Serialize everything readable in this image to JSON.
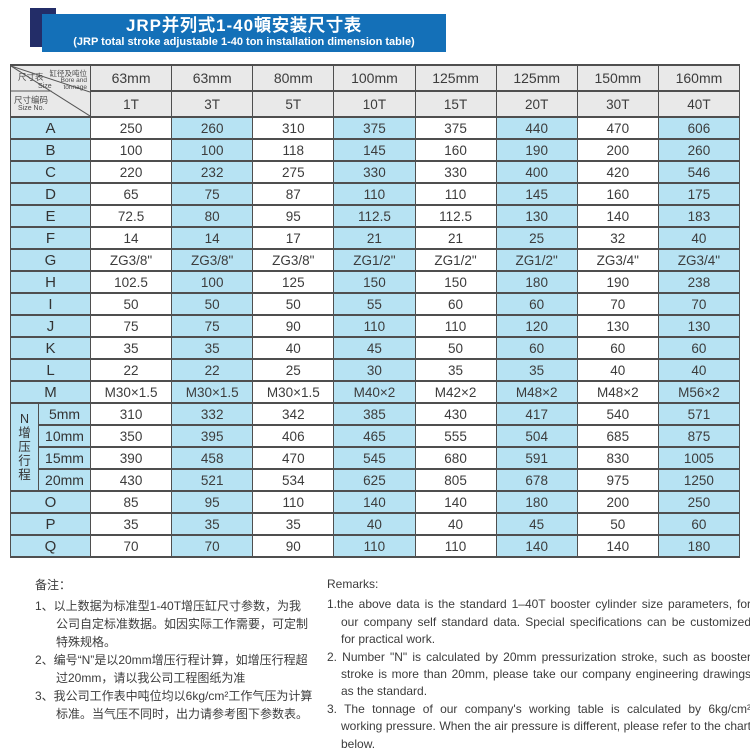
{
  "title": {
    "zh": "JRP并列式1-40頓安装尺寸表",
    "en": "(JRP total stroke adjustable 1-40 ton installation dimension table)"
  },
  "colors": {
    "banner_blue": "#1470b8",
    "ribbon_navy": "#232d68",
    "cell_blue": "#b7e3f3",
    "header_gray": "#e9e9e9",
    "border": "#4f4f4f"
  },
  "table": {
    "corner": {
      "size_zh": "尺寸表",
      "size_en": "Size",
      "bore_zh": "缸径及吨位",
      "bore_en": "Bore and tonnage",
      "no_zh": "尺寸编码",
      "no_en": "Size No."
    },
    "bores": [
      "63mm",
      "63mm",
      "80mm",
      "100mm",
      "125mm",
      "125mm",
      "150mm",
      "160mm"
    ],
    "tonnages": [
      "1T",
      "3T",
      "5T",
      "10T",
      "15T",
      "20T",
      "30T",
      "40T"
    ],
    "rows": [
      {
        "label": "A",
        "values": [
          "250",
          "260",
          "310",
          "375",
          "375",
          "440",
          "470",
          "606"
        ]
      },
      {
        "label": "B",
        "values": [
          "100",
          "100",
          "118",
          "145",
          "160",
          "190",
          "200",
          "260"
        ]
      },
      {
        "label": "C",
        "values": [
          "220",
          "232",
          "275",
          "330",
          "330",
          "400",
          "420",
          "546"
        ]
      },
      {
        "label": "D",
        "values": [
          "65",
          "75",
          "87",
          "110",
          "110",
          "145",
          "160",
          "175"
        ]
      },
      {
        "label": "E",
        "values": [
          "72.5",
          "80",
          "95",
          "112.5",
          "112.5",
          "130",
          "140",
          "183"
        ]
      },
      {
        "label": "F",
        "values": [
          "14",
          "14",
          "17",
          "21",
          "21",
          "25",
          "32",
          "40"
        ]
      },
      {
        "label": "G",
        "values": [
          "ZG3/8\"",
          "ZG3/8\"",
          "ZG3/8\"",
          "ZG1/2\"",
          "ZG1/2\"",
          "ZG1/2\"",
          "ZG3/4\"",
          "ZG3/4\""
        ]
      },
      {
        "label": "H",
        "values": [
          "102.5",
          "100",
          "125",
          "150",
          "150",
          "180",
          "190",
          "238"
        ]
      },
      {
        "label": "I",
        "values": [
          "50",
          "50",
          "50",
          "55",
          "60",
          "60",
          "70",
          "70"
        ]
      },
      {
        "label": "J",
        "values": [
          "75",
          "75",
          "90",
          "110",
          "110",
          "120",
          "130",
          "130"
        ]
      },
      {
        "label": "K",
        "values": [
          "35",
          "35",
          "40",
          "45",
          "50",
          "60",
          "60",
          "60"
        ]
      },
      {
        "label": "L",
        "values": [
          "22",
          "22",
          "25",
          "30",
          "35",
          "35",
          "40",
          "40"
        ]
      },
      {
        "label": "M",
        "values": [
          "M30×1.5",
          "M30×1.5",
          "M30×1.5",
          "M40×2",
          "M42×2",
          "M48×2",
          "M48×2",
          "M56×2"
        ]
      },
      {
        "label": "5mm",
        "sub": true,
        "group": {
          "letter": "N",
          "text": "增压行程",
          "span": 4
        },
        "values": [
          "310",
          "332",
          "342",
          "385",
          "430",
          "417",
          "540",
          "571"
        ]
      },
      {
        "label": "10mm",
        "sub": true,
        "values": [
          "350",
          "395",
          "406",
          "465",
          "555",
          "504",
          "685",
          "875"
        ]
      },
      {
        "label": "15mm",
        "sub": true,
        "values": [
          "390",
          "458",
          "470",
          "545",
          "680",
          "591",
          "830",
          "1005"
        ]
      },
      {
        "label": "20mm",
        "sub": true,
        "values": [
          "430",
          "521",
          "534",
          "625",
          "805",
          "678",
          "975",
          "1250"
        ]
      },
      {
        "label": "O",
        "values": [
          "85",
          "95",
          "110",
          "140",
          "140",
          "180",
          "200",
          "250"
        ]
      },
      {
        "label": "P",
        "values": [
          "35",
          "35",
          "35",
          "40",
          "40",
          "45",
          "50",
          "60"
        ]
      },
      {
        "label": "Q",
        "values": [
          "70",
          "70",
          "90",
          "110",
          "110",
          "140",
          "140",
          "180"
        ]
      }
    ]
  },
  "notes_zh": {
    "heading": "备注：",
    "items": [
      "1、以上数据为标准型1-40T增压缸尺寸参数，为我公司自定标准数据。如因实际工作需要，可定制特殊规格。",
      "2、编号“N”是以20mm增压行程计算，如增压行程超过20mm，请以我公司工程图纸为准",
      "3、我公司工作表中吨位均以6kg/cm²工作气压为计算标准。当气压不同时，出力请参考图下参数表。"
    ]
  },
  "notes_en": {
    "heading": "Remarks:",
    "items": [
      "1.the above data is the standard 1–40T booster cylinder size parameters, for our company self standard data. Special specifications can be customized for practical work.",
      "2. Number \"N\" is calculated by 20mm pressurization stroke, such as booster stroke is more than 20mm, please take our company engineering drawings as the standard.",
      "3. The tonnage of our company's working table is calculated by 6kg/cm² working pressure. When the air pressure is different, please refer to the chart below."
    ]
  }
}
